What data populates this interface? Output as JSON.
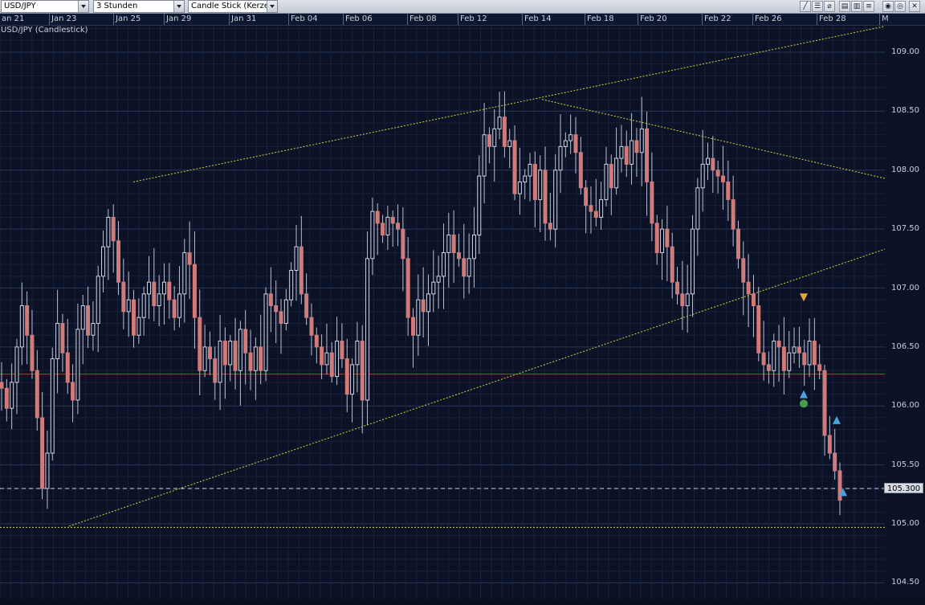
{
  "toolbar": {
    "symbol": "USD/JPY",
    "interval": "3 Stunden",
    "chart_type": "Candle Stick (Kerze"
  },
  "chart_data": {
    "type": "candlestick",
    "title": "USD/JPY (Candlestick)",
    "date_ticks": [
      "an 21",
      "Jan 23",
      "Jan 25",
      "Jan 29",
      "Jan 31",
      "Feb 04",
      "Feb 06",
      "Feb 08",
      "Feb 12",
      "Feb 14",
      "Feb 18",
      "Feb 20",
      "Feb 22",
      "Feb 26",
      "Feb 28",
      "M"
    ],
    "price_ticks": [
      "109.00",
      "108.50",
      "108.00",
      "107.50",
      "107.00",
      "106.50",
      "106.00",
      "105.50",
      "105.00",
      "104.50"
    ],
    "ylim": [
      104.4,
      109.22
    ],
    "last_price": "105.300",
    "horizontal_line_red": 106.27,
    "horizontal_line_yellow": 104.97,
    "grid": true,
    "colors": {
      "background": "#0c1226",
      "grid": "#1f2a4a",
      "candle_up": "#cfd6e6",
      "candle_down": "#d07a7a",
      "trendline": "#d8d23a",
      "support_line": "#c0392b",
      "last_price_line": "#d0d4dc"
    },
    "trendlines": [
      {
        "name": "upper-channel",
        "from": [
          "Jan 25",
          107.9
        ],
        "to": [
          "Mar 01",
          109.22
        ]
      },
      {
        "name": "lower-channel",
        "from": [
          "Jan 23",
          104.98
        ],
        "to": [
          "Mar 01",
          107.33
        ]
      },
      {
        "name": "descending",
        "from": [
          "Feb 14",
          108.6
        ],
        "to": [
          "Mar 01",
          107.93
        ]
      }
    ],
    "markers": [
      {
        "type": "triangle-down",
        "color": "#e0a83a",
        "date": "Feb 27",
        "price": 106.92
      },
      {
        "type": "triangle-up",
        "color": "#4aa3df",
        "date": "Feb 27",
        "price": 106.1
      },
      {
        "type": "circle",
        "color": "#4a9a50",
        "date": "Feb 27",
        "price": 106.02
      },
      {
        "type": "triangle-up",
        "color": "#4aa3df",
        "date": "Feb 28",
        "price": 105.88
      },
      {
        "type": "triangle-up",
        "color": "#4aa3df",
        "date": "Feb 28",
        "price": 105.27
      }
    ],
    "closes": [
      106.15,
      105.98,
      106.2,
      106.5,
      106.85,
      106.6,
      106.3,
      105.9,
      105.3,
      105.6,
      106.4,
      106.7,
      106.45,
      106.2,
      106.05,
      106.65,
      106.85,
      106.6,
      106.7,
      107.1,
      107.35,
      107.6,
      107.4,
      107.05,
      106.8,
      106.9,
      106.6,
      106.75,
      106.95,
      107.05,
      106.85,
      106.95,
      107.05,
      106.9,
      106.75,
      106.95,
      107.3,
      107.2,
      106.75,
      106.3,
      106.5,
      106.4,
      106.2,
      106.55,
      106.35,
      106.55,
      106.3,
      106.65,
      106.45,
      106.3,
      106.5,
      106.3,
      106.95,
      106.85,
      106.8,
      106.7,
      106.9,
      107.15,
      107.35,
      106.95,
      106.75,
      106.6,
      106.5,
      106.35,
      106.45,
      106.25,
      106.55,
      106.4,
      106.1,
      106.35,
      106.55,
      106.05,
      107.25,
      107.65,
      107.55,
      107.45,
      107.6,
      107.55,
      107.5,
      107.25,
      106.75,
      106.6,
      106.9,
      106.8,
      106.95,
      107.05,
      107.1,
      107.3,
      107.45,
      107.3,
      107.25,
      107.1,
      107.25,
      107.45,
      107.95,
      108.3,
      108.2,
      108.35,
      108.45,
      108.2,
      108.25,
      107.8,
      107.9,
      107.95,
      108.05,
      107.75,
      108.0,
      107.55,
      107.5,
      108.0,
      108.2,
      108.25,
      108.3,
      108.15,
      107.85,
      107.7,
      107.65,
      107.6,
      107.75,
      108.05,
      107.85,
      108.1,
      108.2,
      108.05,
      108.25,
      108.15,
      108.35,
      107.9,
      107.55,
      107.3,
      107.5,
      107.35,
      107.05,
      106.95,
      106.85,
      106.95,
      107.5,
      107.85,
      108.05,
      108.1,
      108.0,
      107.95,
      107.9,
      107.75,
      107.5,
      107.25,
      107.05,
      106.95,
      106.85,
      106.45,
      106.35,
      106.3,
      106.55,
      106.5,
      106.3,
      106.45,
      106.5,
      106.45,
      106.35,
      106.55,
      106.35,
      106.3,
      105.75,
      105.6,
      105.45,
      105.2
    ]
  }
}
